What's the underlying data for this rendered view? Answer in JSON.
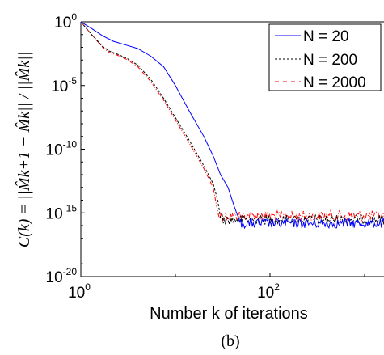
{
  "chart_data": {
    "type": "line",
    "title": "",
    "xlabel": "Number k of iterations",
    "ylabel": "C(k) = ||M̂k+1 − M̂k|| / ||M̂k||",
    "caption": "(b)",
    "x_scale": "log",
    "y_scale": "log",
    "xlim": [
      1,
      1000
    ],
    "ylim": [
      1e-20,
      1
    ],
    "x_ticks": [
      {
        "value": 1,
        "base": "10",
        "exp": "0"
      },
      {
        "value": 100,
        "base": "10",
        "exp": "2"
      }
    ],
    "y_ticks": [
      {
        "value": 1,
        "base": "10",
        "exp": "0"
      },
      {
        "value": 1e-05,
        "base": "10",
        "exp": "-5"
      },
      {
        "value": 1e-10,
        "base": "10",
        "exp": "-10"
      },
      {
        "value": 1e-15,
        "base": "10",
        "exp": "-15"
      },
      {
        "value": 1e-20,
        "base": "10",
        "exp": "-20"
      }
    ],
    "grid": false,
    "legend_position": "top-right",
    "series": [
      {
        "name": "N = 20",
        "color": "#0000ff",
        "dash": "solid",
        "x": [
          1,
          1.3,
          1.7,
          2.2,
          3.0,
          4.0,
          5.5,
          7.5,
          10,
          14,
          20,
          25,
          30,
          36,
          42,
          46,
          48
        ],
        "y": [
          1,
          0.3,
          0.08,
          0.03,
          0.015,
          0.008,
          0.002,
          0.0003,
          1e-05,
          1e-07,
          1e-09,
          3e-11,
          1e-12,
          1e-13,
          3e-15,
          5e-16,
          2e-16
        ],
        "noise_floor": 1.5e-16
      },
      {
        "name": "N = 200",
        "color": "#000000",
        "dash": "3,2",
        "x": [
          1,
          1.3,
          1.7,
          2.0,
          2.4,
          3.0,
          4.0,
          5.5,
          7.5,
          10,
          14,
          20,
          25,
          28,
          30
        ],
        "y": [
          1,
          0.1,
          0.012,
          0.005,
          0.003,
          0.0015,
          0.0004,
          3e-05,
          1e-06,
          3e-08,
          5e-10,
          5e-12,
          2e-13,
          1e-14,
          4e-16
        ],
        "noise_floor": 3e-16
      },
      {
        "name": "N = 2000",
        "color": "#ff0000",
        "dash": "5,2,1,2",
        "x": [
          1,
          1.3,
          1.7,
          2.0,
          2.4,
          3.0,
          4.0,
          5.5,
          7.5,
          10,
          14,
          20,
          25,
          27,
          29
        ],
        "y": [
          1,
          0.1,
          0.01,
          0.004,
          0.0025,
          0.0012,
          0.0003,
          2e-05,
          7e-07,
          2e-08,
          3e-10,
          3e-12,
          1e-13,
          5e-15,
          4e-16
        ],
        "noise_floor": 6e-16
      }
    ]
  }
}
